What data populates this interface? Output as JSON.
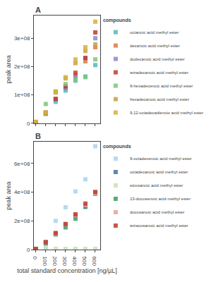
{
  "chart_data": [
    {
      "type": "scatter",
      "title": "A",
      "x": [
        0,
        100,
        200,
        300,
        400,
        500,
        600
      ],
      "series": [
        {
          "name": "octanoic acid methyl ester",
          "color": "#55b8b8",
          "marker": "square",
          "values": [
            2000000,
            32000000,
            75000000,
            115000000,
            150000000,
            165000000,
            205000000
          ]
        },
        {
          "name": "decanoic acid methyl ester",
          "color": "#e07b39",
          "marker": "square",
          "values": [
            3000000,
            38000000,
            85000000,
            128000000,
            168000000,
            218000000,
            268000000
          ]
        },
        {
          "name": "dodecanoic acid methyl ester",
          "color": "#8888cc",
          "marker": "square",
          "values": [
            2000000,
            36000000,
            83000000,
            124000000,
            164000000,
            230000000,
            300000000
          ]
        },
        {
          "name": "tetradecanoic acid methyl ester",
          "color": "#c0392b",
          "marker": "square",
          "values": [
            2000000,
            36000000,
            86000000,
            130000000,
            178000000,
            230000000,
            320000000
          ]
        },
        {
          "name": "9-hexadecenoic acid methyl ester",
          "color": "#7bc67b",
          "marker": "square",
          "values": [
            1000000,
            68000000,
            112000000,
            138000000,
            155000000,
            162000000,
            225000000
          ]
        },
        {
          "name": "hexadecanoic acid methyl ester",
          "color": "#c8a040",
          "marker": "square",
          "values": [
            3000000,
            35000000,
            108000000,
            158000000,
            212000000,
            255000000,
            278000000
          ]
        },
        {
          "name": "9,12-octadecadienoic acid methyl ester",
          "color": "#d4b040",
          "marker": "square",
          "values": [
            5000000,
            38000000,
            112000000,
            162000000,
            225000000,
            268000000,
            358000000
          ]
        }
      ],
      "ylabel": "peak area",
      "legend_title": "compounds",
      "legend": "right",
      "xlim": [
        -20,
        650
      ],
      "xticks": [
        0,
        100,
        200,
        300,
        400,
        500,
        600
      ],
      "ylim": [
        0,
        380000000
      ],
      "yticks": [
        0,
        {
          "value": 100000000,
          "label": "1e+08"
        },
        {
          "value": 200000000,
          "label": "2e+08"
        },
        {
          "value": 300000000,
          "label": "3e+08"
        }
      ],
      "grid": false,
      "tick_labels": "y"
    },
    {
      "type": "scatter",
      "title": "B",
      "x": [
        0,
        100,
        200,
        300,
        400,
        500,
        600
      ],
      "series": [
        {
          "name": "9-octadecenoic acid methyl ester",
          "color": "#aad4ee",
          "marker": "square",
          "values": [
            2000000,
            8000000,
            200000000,
            295000000,
            405000000,
            490000000,
            720000000
          ]
        },
        {
          "name": "octadecanoic acid methyl ester",
          "color": "#4a6fa5",
          "marker": "square",
          "values": [
            2000000,
            52000000,
            110000000,
            175000000,
            235000000,
            298000000,
            395000000
          ]
        },
        {
          "name": "eicosanoic acid methyl ester",
          "color": "#c8e0b0",
          "marker": "square",
          "values": [
            1000000,
            4000000,
            4500000,
            5000000,
            5000000,
            5000000,
            5000000
          ]
        },
        {
          "name": "13-docosenoic acid methyl ester",
          "color": "#3a9e5f",
          "marker": "square",
          "values": [
            2000000,
            42000000,
            105000000,
            155000000,
            215000000,
            298000000,
            388000000
          ]
        },
        {
          "name": "docosanoic acid methyl ester",
          "color": "#e8a0a0",
          "marker": "square",
          "values": [
            2000000,
            52000000,
            112000000,
            175000000,
            238000000,
            310000000,
            392000000
          ]
        },
        {
          "name": "tetracosanoic acid methyl ester",
          "color": "#c0392b",
          "marker": "square",
          "values": [
            5000000,
            52000000,
            115000000,
            178000000,
            245000000,
            320000000,
            402000000
          ]
        }
      ],
      "ylabel": "peak area",
      "xlabel": "total standard concentration [ng/µL]",
      "legend_title": "compounds",
      "legend": "right",
      "xlim": [
        -20,
        650
      ],
      "xticks": [
        0,
        100,
        200,
        300,
        400,
        500,
        600
      ],
      "ylim": [
        0,
        750000000
      ],
      "yticks": [
        0,
        {
          "value": 200000000,
          "label": "2e+08"
        },
        {
          "value": 400000000,
          "label": "4e+08"
        },
        {
          "value": 600000000,
          "label": "6e+08"
        }
      ],
      "grid": false
    }
  ]
}
